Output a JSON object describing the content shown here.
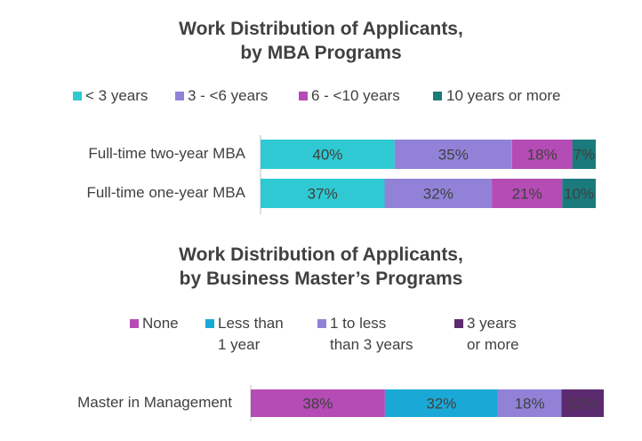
{
  "chart_data": [
    {
      "type": "bar",
      "orientation": "horizontal-stacked",
      "title_line1": "Work Distribution of Applicants,",
      "title_line2": "by MBA Programs",
      "categories": [
        "Full-time two-year MBA",
        "Full-time one-year MBA"
      ],
      "series": [
        {
          "name": "< 3 years",
          "color": "#2ec9d2",
          "values": [
            40,
            37
          ]
        },
        {
          "name": "3 - <6 years",
          "color": "#9182d8",
          "values": [
            35,
            32
          ]
        },
        {
          "name": "6 - <10 years",
          "color": "#b54bb5",
          "values": [
            18,
            21
          ]
        },
        {
          "name": "10 years or more",
          "color": "#1a7a7c",
          "values": [
            7,
            10
          ]
        }
      ],
      "value_labels": [
        [
          "40%",
          "35%",
          "18%",
          "7%"
        ],
        [
          "37%",
          "32%",
          "21%",
          "10%"
        ]
      ],
      "xlim": [
        0,
        100
      ],
      "legend_position": "top"
    },
    {
      "type": "bar",
      "orientation": "horizontal-stacked",
      "title_line1": "Work Distribution of Applicants,",
      "title_line2": "by Business Master’s Programs",
      "categories": [
        "Master in Management"
      ],
      "series": [
        {
          "name_lines": [
            "None"
          ],
          "color": "#b54bb5",
          "values": [
            38
          ]
        },
        {
          "name_lines": [
            "Less than",
            "1 year"
          ],
          "color": "#1aa9d6",
          "values": [
            32
          ]
        },
        {
          "name_lines": [
            "1 to less",
            "than 3 years"
          ],
          "color": "#9182d8",
          "values": [
            18
          ]
        },
        {
          "name_lines": [
            "3 years",
            "or more"
          ],
          "color": "#5c2a6e",
          "values": [
            12
          ]
        }
      ],
      "value_labels": [
        [
          "38%",
          "32%",
          "18%",
          "12%"
        ]
      ],
      "xlim": [
        0,
        100
      ],
      "legend_position": "top"
    }
  ]
}
